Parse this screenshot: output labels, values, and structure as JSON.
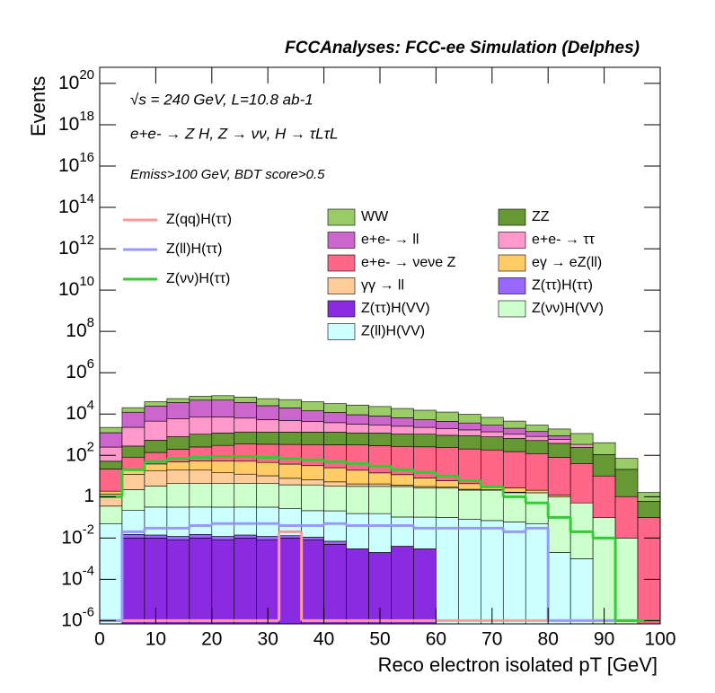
{
  "chart_data": {
    "type": "stacked_histogram",
    "title": "FCCAnalyses: FCC-ee Simulation (Delphes)",
    "annotations": [
      "√s = 240 GeV, L=10.8 ab-1",
      "e+e- → Z H, Z → νν, H → τLτL",
      "Emiss>100 GeV, BDT score>0.5"
    ],
    "x_label": "Reco electron isolated pT [GeV]",
    "y_label": "Events",
    "log_y": true,
    "bins": [
      0,
      4,
      8,
      12,
      16,
      20,
      24,
      28,
      32,
      36,
      40,
      44,
      48,
      52,
      56,
      60,
      64,
      68,
      72,
      76,
      80,
      84,
      88,
      92,
      96,
      100
    ],
    "xlim": [
      0,
      100
    ],
    "xticks": [
      0,
      10,
      20,
      30,
      40,
      50,
      60,
      70,
      80,
      90,
      100
    ],
    "ylim": [
      7e-07,
      6e+20
    ],
    "yticks": [
      {
        "value": 1e-06,
        "label": "10-6"
      },
      {
        "value": 0.0001,
        "label": "10-4"
      },
      {
        "value": 0.01,
        "label": "10-2"
      },
      1,
      {
        "value": 100,
        "label": "102"
      },
      {
        "value": 10000.0,
        "label": "104"
      },
      {
        "value": 1000000.0,
        "label": "106"
      },
      {
        "value": 100000000.0,
        "label": "108"
      },
      {
        "value": 10000000000.0,
        "label": "1010"
      },
      {
        "value": 1000000000000.0,
        "label": "1012"
      },
      {
        "value": 100000000000000.0,
        "label": "1014"
      },
      {
        "value": 1e+16,
        "label": "1016"
      },
      {
        "value": 1e+18,
        "label": "1018"
      },
      {
        "value": 1e+20,
        "label": "1020"
      }
    ],
    "series": [
      {
        "name": "WW",
        "color": "#99cc66",
        "values": [
          1000,
          8000,
          15000,
          20000,
          25000,
          30000,
          30000,
          30000,
          30000,
          25000,
          20000,
          18000,
          15000,
          12000,
          10000,
          8000,
          6000,
          4000,
          2500,
          1500,
          1000,
          800,
          300,
          50,
          1
        ]
      },
      {
        "name": "ZZ",
        "color": "#669933",
        "values": [
          30,
          200,
          400,
          600,
          800,
          900,
          1000,
          1000,
          1000,
          1000,
          1000,
          900,
          900,
          800,
          800,
          700,
          700,
          600,
          500,
          400,
          300,
          200,
          100,
          20,
          0.5
        ]
      },
      {
        "name": "e+e- → ll",
        "color": "#cc66cc",
        "values": [
          1000,
          10000,
          20000,
          30000,
          40000,
          40000,
          30000,
          20000,
          15000,
          10000,
          8000,
          6000,
          5000,
          4000,
          3000,
          2500,
          2000,
          1500,
          1000,
          600,
          300,
          0,
          0,
          0,
          0
        ]
      },
      {
        "name": "e+e- → ττ",
        "color": "#ff99cc",
        "values": [
          200,
          2000,
          4000,
          5000,
          6000,
          6000,
          5000,
          4000,
          3500,
          3000,
          2500,
          2000,
          1800,
          1500,
          1200,
          1000,
          800,
          600,
          400,
          300,
          200,
          100,
          0,
          0,
          0
        ]
      },
      {
        "name": "e+e- → νeνe Z",
        "color": "#ff6688",
        "values": [
          20,
          60,
          100,
          150,
          200,
          250,
          300,
          300,
          300,
          300,
          300,
          300,
          280,
          260,
          250,
          230,
          200,
          180,
          150,
          120,
          80,
          40,
          10,
          1,
          0.1
        ]
      },
      {
        "name": "eγ → eZ(ll)",
        "color": "#ffcc66",
        "values": [
          0.5,
          10,
          20,
          30,
          35,
          40,
          40,
          35,
          30,
          25,
          20,
          15,
          10,
          8,
          5,
          3,
          2,
          1,
          1,
          0.5,
          0.2,
          0,
          0,
          0,
          0
        ]
      },
      {
        "name": "γγ → ll",
        "color": "#ffcc99",
        "values": [
          1,
          10,
          15,
          15,
          15,
          10,
          8,
          6,
          4,
          3,
          2,
          1,
          1,
          0.5,
          0.5,
          0.3,
          0.2,
          0.1,
          0.1,
          0,
          0,
          0,
          0,
          0,
          0
        ]
      },
      {
        "name": "Z(ττ)H(ττ)",
        "color": "#9966ff",
        "values": [
          0,
          0.005,
          0.004,
          0.004,
          0.005,
          0.004,
          0.004,
          0.004,
          0.003,
          0.003,
          0.002,
          0,
          0,
          0,
          0,
          0,
          0,
          0,
          0,
          0,
          0,
          0,
          0,
          0,
          0
        ]
      },
      {
        "name": "Z(ττ)H(VV)",
        "color": "#8a2be2",
        "values": [
          0,
          0.01,
          0.01,
          0.008,
          0.01,
          0.008,
          0.01,
          0.008,
          0.01,
          0.008,
          0.005,
          0.003,
          0.002,
          0.004,
          0.003,
          0,
          0,
          0,
          0,
          0,
          0,
          0,
          0,
          0,
          0
        ]
      },
      {
        "name": "Z(νν)H(VV)",
        "color": "#ccffcc",
        "values": [
          0.3,
          2,
          3,
          4,
          4,
          4,
          4,
          4,
          3.5,
          3.5,
          3,
          3,
          3,
          3,
          2.5,
          2.5,
          2,
          2,
          1.5,
          1.5,
          1,
          0.5,
          0.1,
          0.01,
          0
        ]
      },
      {
        "name": "Z(ll)H(VV)",
        "color": "#ccffff",
        "values": [
          0.05,
          0.2,
          0.3,
          0.3,
          0.3,
          0.3,
          0.3,
          0.3,
          0.25,
          0.2,
          0.2,
          0.15,
          0.15,
          0.1,
          0.1,
          0.1,
          0.08,
          0.07,
          0.06,
          0.05,
          0.002,
          0.001,
          0,
          0,
          0
        ]
      }
    ],
    "lines": [
      {
        "name": "Z(qq)H(ττ)",
        "color": "#ff9999",
        "values": [
          1e-06,
          1e-06,
          1e-06,
          1e-06,
          1e-06,
          1e-06,
          1e-06,
          1e-06,
          0.02,
          1e-06,
          1e-06,
          1e-06,
          1e-06,
          1e-06,
          1e-06,
          1e-06,
          1e-06,
          1e-06,
          1e-06,
          1e-06,
          1e-06,
          1e-06,
          1e-06,
          1e-06,
          1e-06
        ]
      },
      {
        "name": "Z(ll)H(ττ)",
        "color": "#9999ff",
        "values": [
          1e-06,
          0.02,
          0.03,
          0.03,
          0.04,
          0.05,
          0.05,
          0.05,
          0.04,
          0.04,
          0.05,
          0.04,
          0.04,
          0.04,
          0.03,
          0.03,
          0.03,
          0.03,
          0.02,
          0.03,
          1e-06,
          1e-06,
          1e-06,
          1e-06,
          1e-06
        ]
      },
      {
        "name": "Z(νν)H(ττ)",
        "color": "#33cc33",
        "values": [
          1,
          20,
          50,
          70,
          80,
          90,
          90,
          80,
          70,
          60,
          50,
          40,
          30,
          20,
          15,
          10,
          6,
          3,
          1,
          0.5,
          0.1,
          0.02,
          0.01,
          1e-06,
          1e-06
        ]
      }
    ]
  }
}
